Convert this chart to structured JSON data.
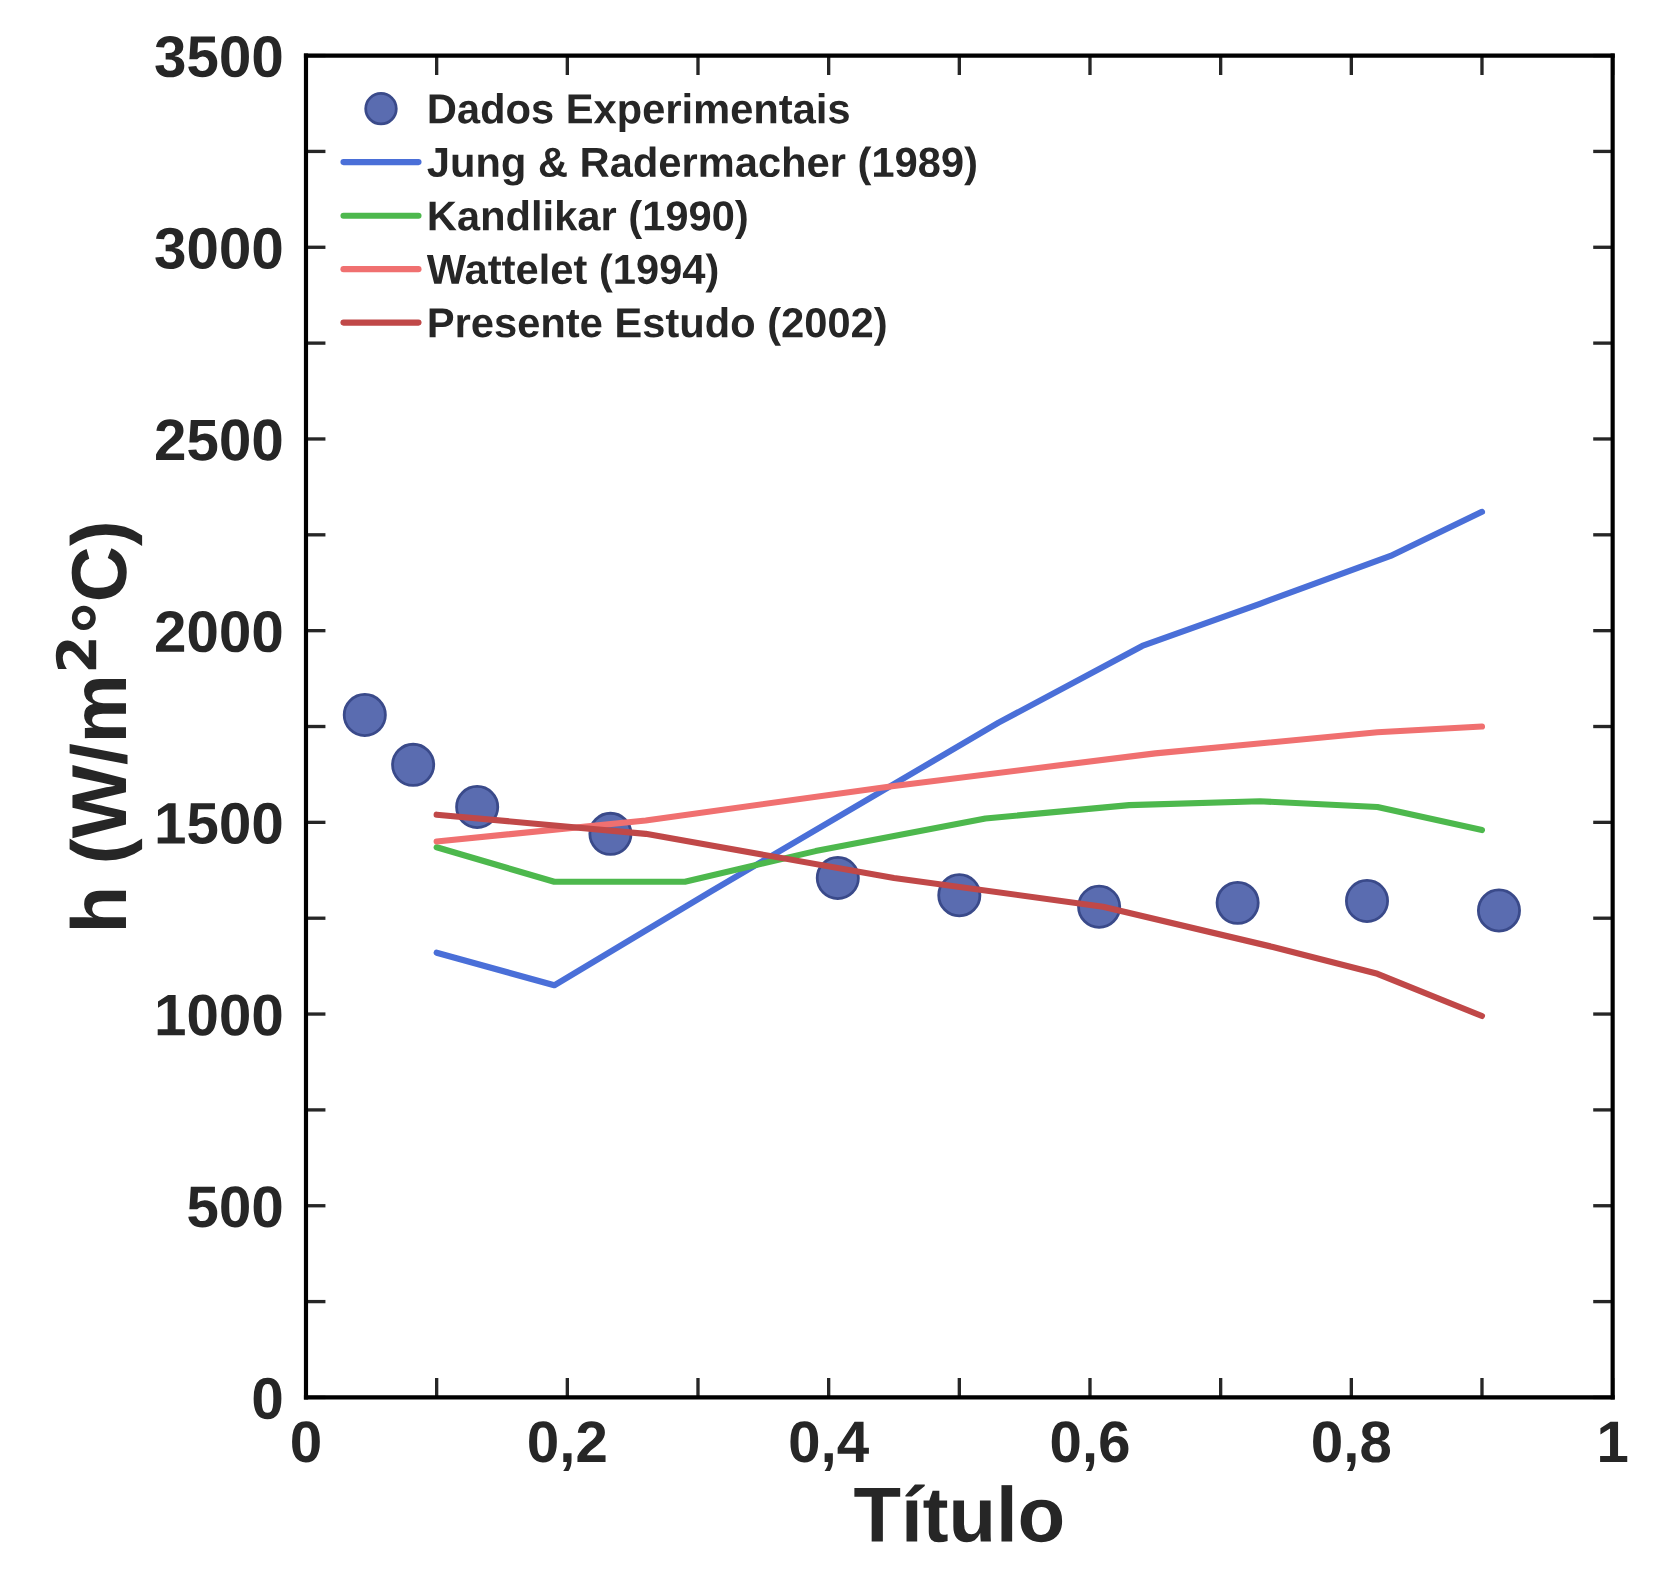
{
  "chart_data": {
    "type": "line",
    "xlabel": "Título",
    "ylabel": "h (W/m$^{2}$°C)",
    "xlim": [
      0,
      1
    ],
    "ylim": [
      0,
      3500
    ],
    "xticks": [
      0,
      {
        "value": 0.1,
        "label": null
      },
      {
        "value": 0.2,
        "label": "0,2"
      },
      {
        "value": 0.3,
        "label": null
      },
      {
        "value": 0.4,
        "label": "0,4"
      },
      {
        "value": 0.5,
        "label": null
      },
      {
        "value": 0.6,
        "label": "0,6"
      },
      {
        "value": 0.7,
        "label": null
      },
      {
        "value": 0.8,
        "label": "0,8"
      },
      {
        "value": 0.9,
        "label": null
      },
      1
    ],
    "yticks": [
      0,
      {
        "value": 250,
        "label": null
      },
      500,
      {
        "value": 750,
        "label": null
      },
      1000,
      {
        "value": 1250,
        "label": null
      },
      1500,
      {
        "value": 1750,
        "label": null
      },
      2000,
      {
        "value": 2250,
        "label": null
      },
      2500,
      {
        "value": 2750,
        "label": null
      },
      3000,
      {
        "value": 3250,
        "label": null
      },
      3500
    ],
    "grid": false,
    "legend": "top left",
    "series": [
      {
        "name": "Dados Experimentais",
        "type": "scatter",
        "marker": "circle",
        "color": "#5a6cb0",
        "x": [
          0.045,
          0.082,
          0.131,
          0.233,
          0.407,
          0.5,
          0.607,
          0.713,
          0.812,
          0.913
        ],
        "values": [
          1780,
          1650,
          1540,
          1470,
          1355,
          1310,
          1280,
          1290,
          1295,
          1270
        ]
      },
      {
        "name": "Jung & Radermacher (1989)",
        "line_style": "solid",
        "color": "#4a6fd8",
        "x": [
          0.1,
          0.19,
          0.31,
          0.43,
          0.53,
          0.64,
          0.73,
          0.83,
          0.9
        ],
        "values": [
          1160,
          1075,
          1320,
          1560,
          1760,
          1960,
          2070,
          2195,
          2310
        ]
      },
      {
        "name": "Kandlikar (1990)",
        "line_style": "solid",
        "color": "#4db84d",
        "x": [
          0.1,
          0.19,
          0.29,
          0.39,
          0.52,
          0.63,
          0.73,
          0.82,
          0.9
        ],
        "values": [
          1435,
          1345,
          1345,
          1425,
          1510,
          1545,
          1555,
          1540,
          1480
        ]
      },
      {
        "name": "Wattelet (1994)",
        "line_style": "solid",
        "color": "#f07070",
        "x": [
          0.1,
          0.26,
          0.45,
          0.65,
          0.82,
          0.9
        ],
        "values": [
          1450,
          1505,
          1595,
          1680,
          1735,
          1750
        ]
      },
      {
        "name": "Presente Estudo (2002)",
        "line_style": "solid",
        "color": "#c04848",
        "x": [
          0.1,
          0.26,
          0.45,
          0.61,
          0.74,
          0.82,
          0.9
        ],
        "values": [
          1520,
          1470,
          1355,
          1280,
          1175,
          1105,
          995
        ]
      }
    ]
  }
}
